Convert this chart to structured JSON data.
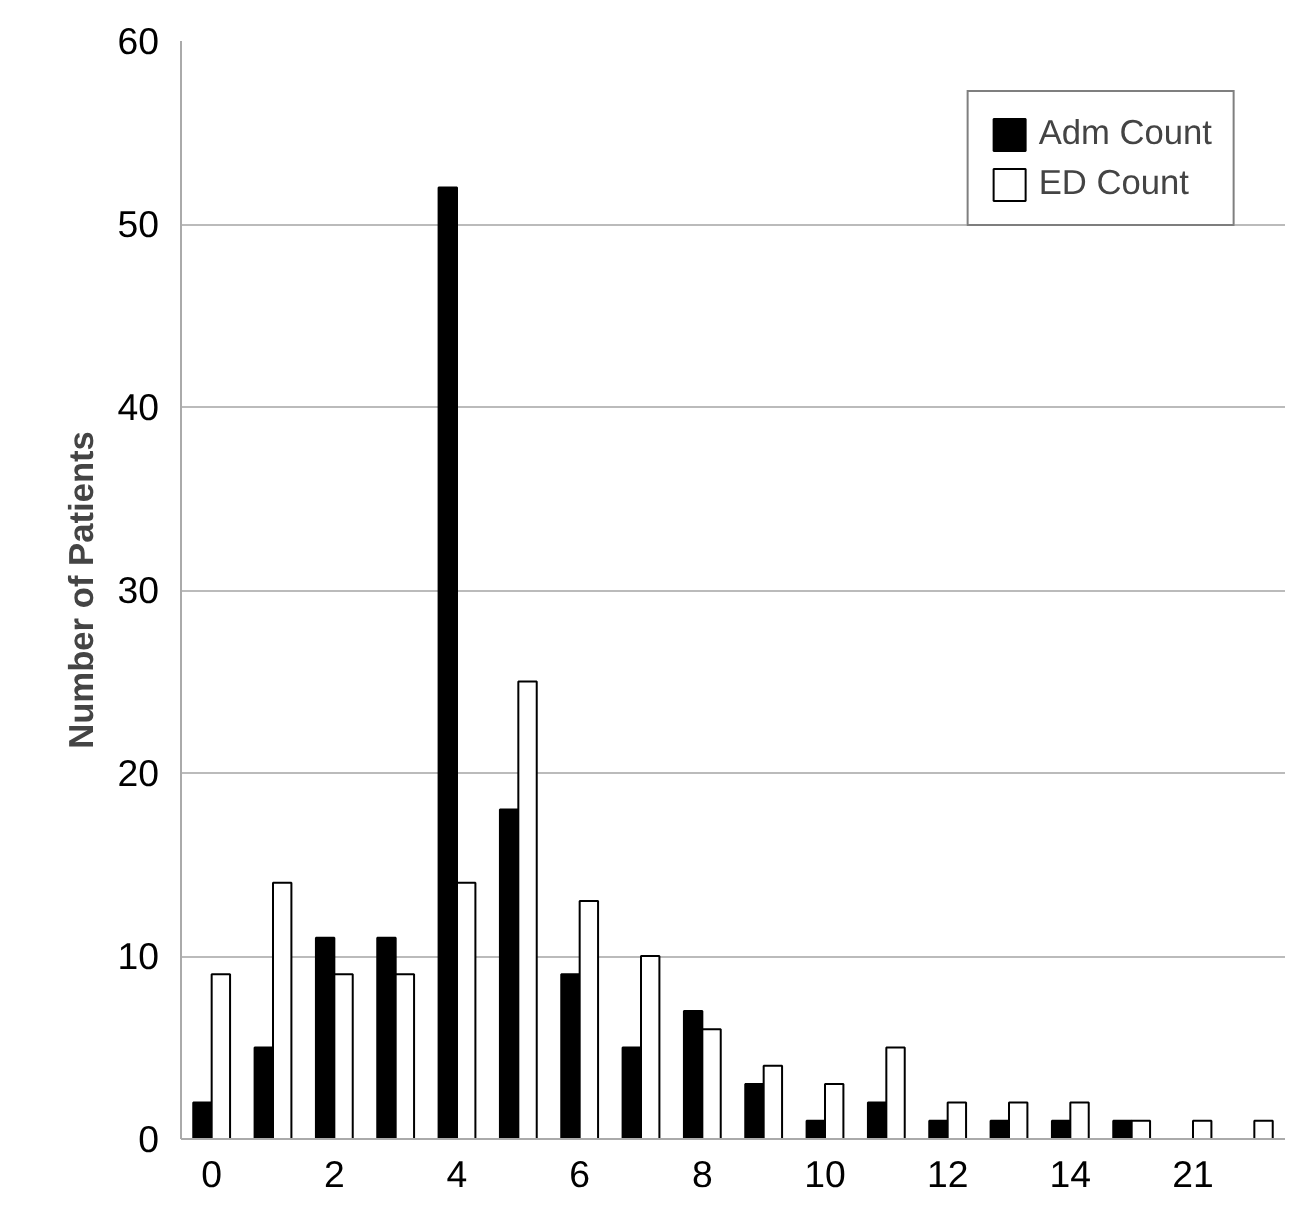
{
  "chart_data": {
    "type": "bar",
    "ylabel": "Number of Patients",
    "categories": [
      "0",
      null,
      "2",
      null,
      "4",
      null,
      "6",
      null,
      "8",
      null,
      "10",
      null,
      "12",
      null,
      "14",
      null,
      "21",
      null
    ],
    "series": [
      {
        "name": "Adm Count",
        "color": "#000000",
        "values": [
          2,
          5,
          11,
          11,
          52,
          18,
          9,
          5,
          7,
          3,
          1,
          2,
          1,
          1,
          1,
          1,
          0,
          0
        ]
      },
      {
        "name": "ED Count",
        "color": "#ffffff",
        "values": [
          9,
          14,
          9,
          9,
          14,
          25,
          13,
          10,
          6,
          4,
          3,
          5,
          2,
          2,
          2,
          1,
          1,
          1
        ]
      }
    ],
    "ylim": [
      0,
      60
    ],
    "yticks": [
      0,
      10,
      20,
      30,
      40,
      50,
      60
    ],
    "grid": "y",
    "legend": "top right"
  }
}
